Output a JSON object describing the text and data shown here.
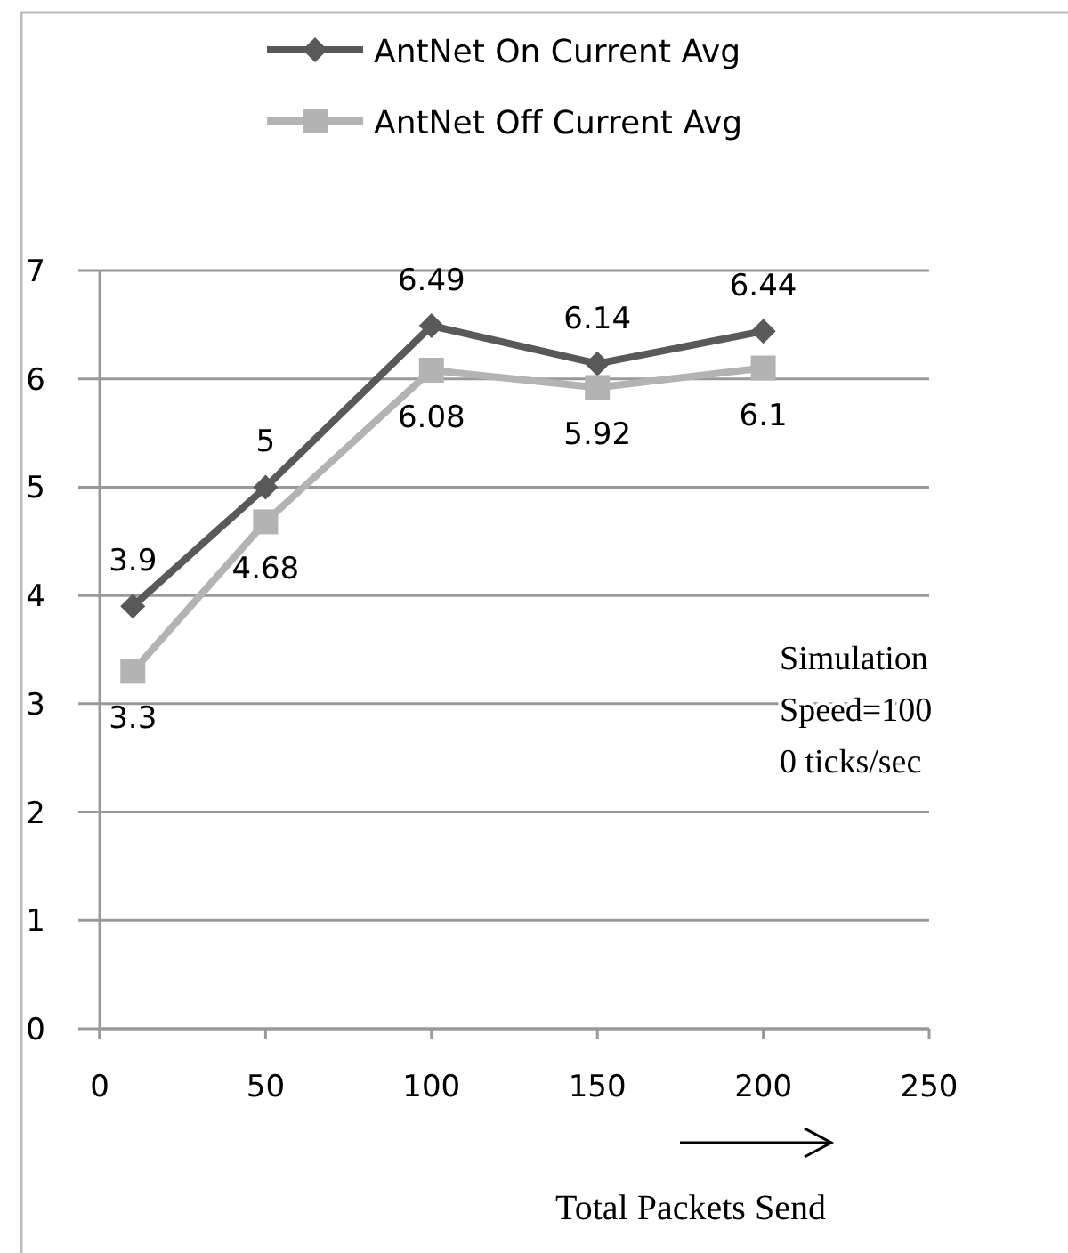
{
  "chart_data": {
    "type": "line",
    "xlabel": "Total Packets Send",
    "x": [
      10,
      50,
      100,
      150,
      200
    ],
    "series": [
      {
        "name": "AntNet On Current Avg",
        "color": "#595959",
        "values": [
          3.9,
          5,
          6.49,
          6.14,
          6.44
        ],
        "marker": "diamond"
      },
      {
        "name": "AntNet Off Current Avg",
        "color": "#b3b3b3",
        "values": [
          3.3,
          4.68,
          6.08,
          5.92,
          6.1
        ],
        "marker": "square"
      }
    ],
    "xlim": [
      0,
      250
    ],
    "xticks": [
      0,
      50,
      100,
      150,
      200,
      250
    ],
    "ylim": [
      0,
      7
    ],
    "yticks": [
      0,
      1,
      2,
      3,
      4,
      5,
      6,
      7
    ],
    "grid": "y",
    "legend": "top",
    "data_labels": true,
    "annotations": [
      "Simulation\nSpeed=100\n0 ticks/sec"
    ]
  }
}
